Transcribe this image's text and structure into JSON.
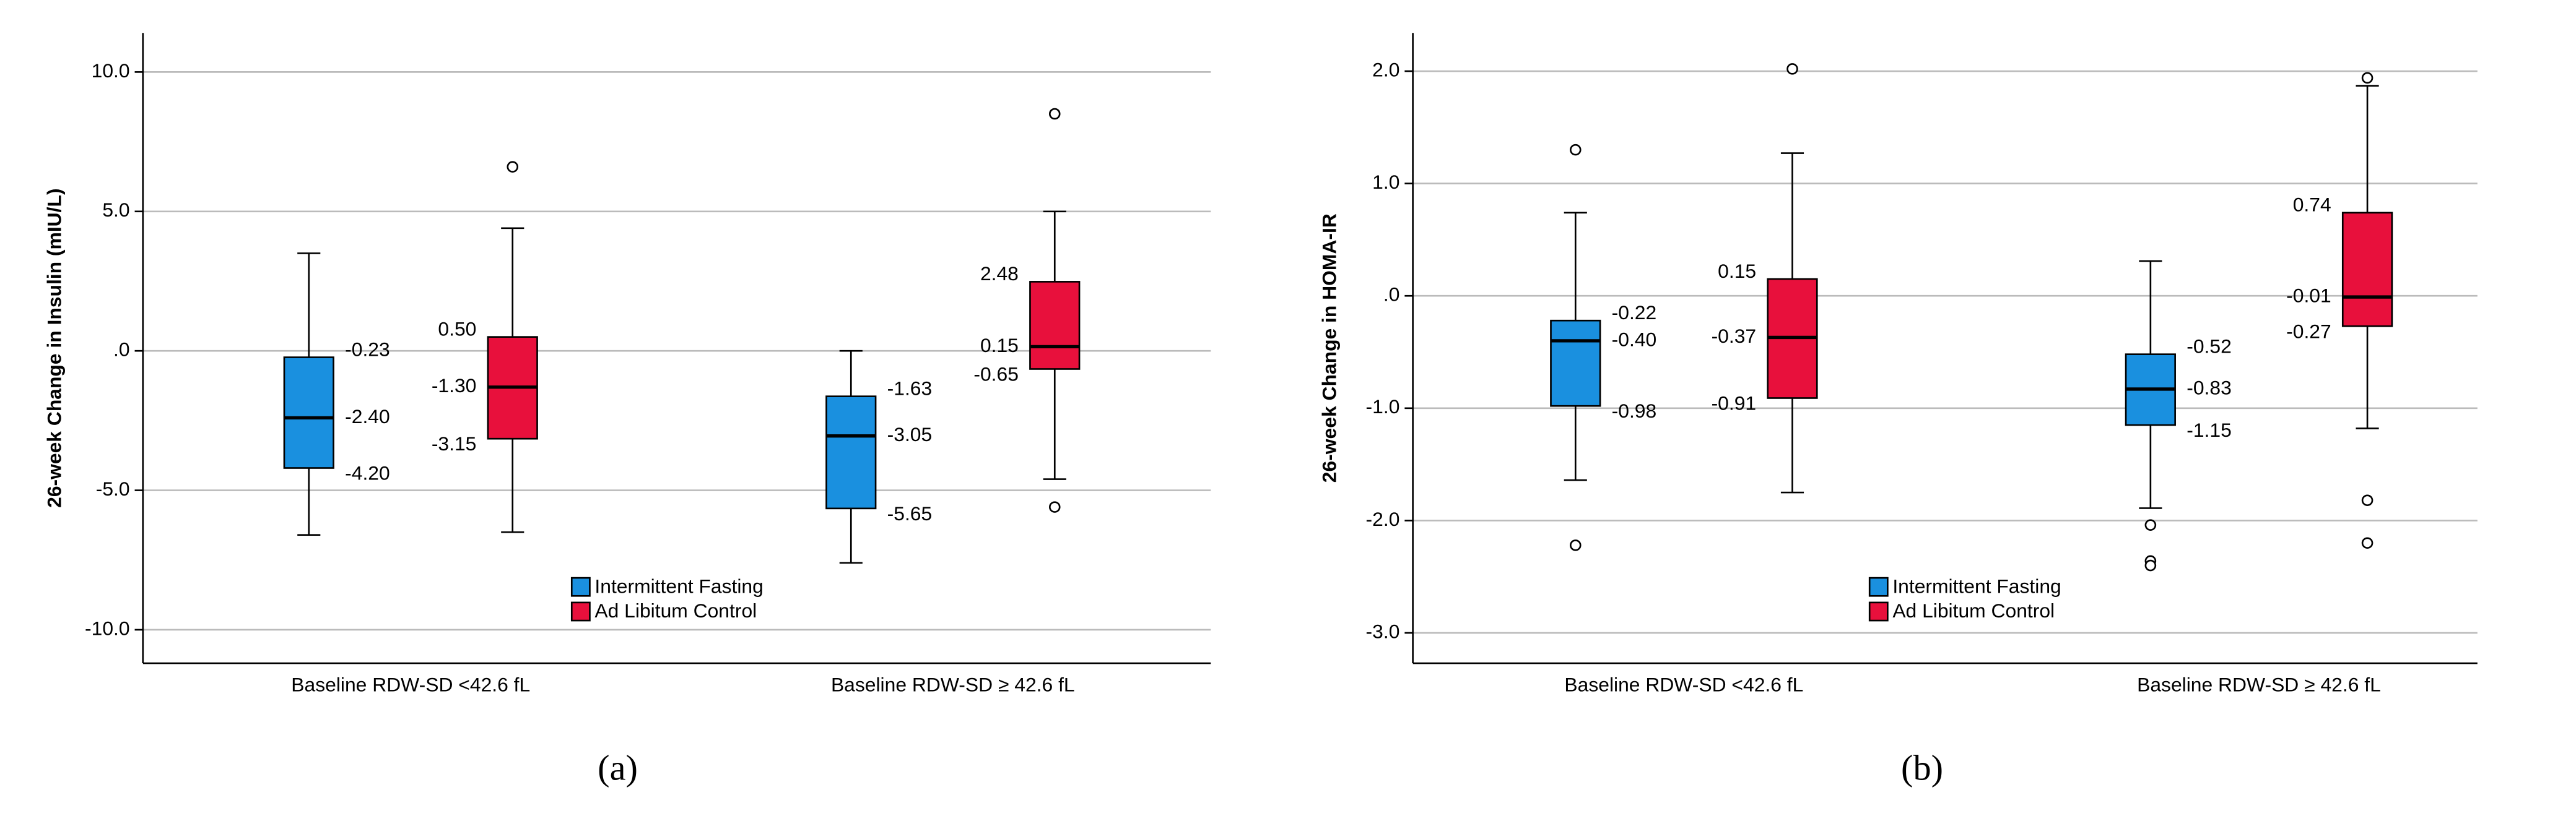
{
  "chart_data": [
    {
      "type": "box",
      "ylabel": "26-week Change in Insulin (mIU/L)",
      "caption": "(a)",
      "categories": [
        "Baseline RDW-SD <42.6 fL",
        "Baseline RDW-SD ≥ 42.6 fL"
      ],
      "ylim": [
        -11.2,
        11.4
      ],
      "yticks": [
        {
          "value": 10,
          "label": "10.0"
        },
        {
          "value": 5,
          "label": "5.0"
        },
        {
          "value": 0,
          "label": ".0"
        },
        {
          "value": -5,
          "label": "-5.0"
        },
        {
          "value": -10,
          "label": "-10.0"
        }
      ],
      "grid": true,
      "series": [
        {
          "name": "Intermittent Fasting",
          "color": "#1a90df",
          "whisker_low": [
            -6.6,
            -7.6
          ],
          "q1": [
            -4.2,
            -5.65
          ],
          "median": [
            -2.4,
            -3.05
          ],
          "q3": [
            -0.23,
            -1.63
          ],
          "whisker_high": [
            3.5,
            0.0
          ],
          "outliers": [
            [],
            []
          ],
          "q1_labels": [
            "-4.20",
            "-5.65"
          ],
          "median_labels": [
            "-2.40",
            "-3.05"
          ],
          "q3_labels": [
            "-0.23",
            "-1.63"
          ]
        },
        {
          "name": "Ad Libitum Control",
          "color": "#e8103c",
          "whisker_low": [
            -6.5,
            -4.6
          ],
          "q1": [
            -3.15,
            -0.65
          ],
          "median": [
            -1.3,
            0.15
          ],
          "q3": [
            0.5,
            2.48
          ],
          "whisker_high": [
            4.4,
            5.0
          ],
          "outliers": [
            [
              6.6
            ],
            [
              8.5,
              -5.6
            ]
          ],
          "q1_labels": [
            "-3.15",
            "-0.65"
          ],
          "median_labels": [
            "-1.30",
            "0.15"
          ],
          "q3_labels": [
            "0.50",
            "2.48"
          ]
        }
      ]
    },
    {
      "type": "box",
      "ylabel": "26-week Change in HOMA-IR",
      "caption": "(b)",
      "categories": [
        "Baseline RDW-SD <42.6 fL",
        "Baseline RDW-SD ≥ 42.6 fL"
      ],
      "ylim": [
        -3.27,
        2.34
      ],
      "yticks": [
        {
          "value": 2,
          "label": "2.0"
        },
        {
          "value": 1,
          "label": "1.0"
        },
        {
          "value": 0,
          "label": ".0"
        },
        {
          "value": -1,
          "label": "-1.0"
        },
        {
          "value": -2,
          "label": "-2.0"
        },
        {
          "value": -3,
          "label": "-3.0"
        }
      ],
      "grid": true,
      "series": [
        {
          "name": "Intermittent Fasting",
          "color": "#1a90df",
          "whisker_low": [
            -1.64,
            -1.89
          ],
          "q1": [
            -0.98,
            -1.15
          ],
          "median": [
            -0.4,
            -0.83
          ],
          "q3": [
            -0.22,
            -0.52
          ],
          "whisker_high": [
            0.74,
            0.31
          ],
          "outliers": [
            [
              1.3,
              -2.22
            ],
            [
              -2.04,
              -2.36,
              -2.4
            ]
          ],
          "q1_labels": [
            "-0.98",
            "-1.15"
          ],
          "median_labels": [
            "-0.40",
            "-0.83"
          ],
          "q3_labels": [
            "-0.22",
            "-0.52"
          ]
        },
        {
          "name": "Ad Libitum Control",
          "color": "#e8103c",
          "whisker_low": [
            -1.75,
            -1.18
          ],
          "q1": [
            -0.91,
            -0.27
          ],
          "median": [
            -0.37,
            -0.01
          ],
          "q3": [
            0.15,
            0.74
          ],
          "whisker_high": [
            1.27,
            1.87
          ],
          "outliers": [
            [
              2.02
            ],
            [
              1.94,
              -1.82,
              -2.2
            ]
          ],
          "q1_labels": [
            "-0.91",
            "-0.27"
          ],
          "median_labels": [
            "-0.37",
            "-0.01"
          ],
          "q3_labels": [
            "0.15",
            "0.74"
          ]
        }
      ]
    }
  ]
}
